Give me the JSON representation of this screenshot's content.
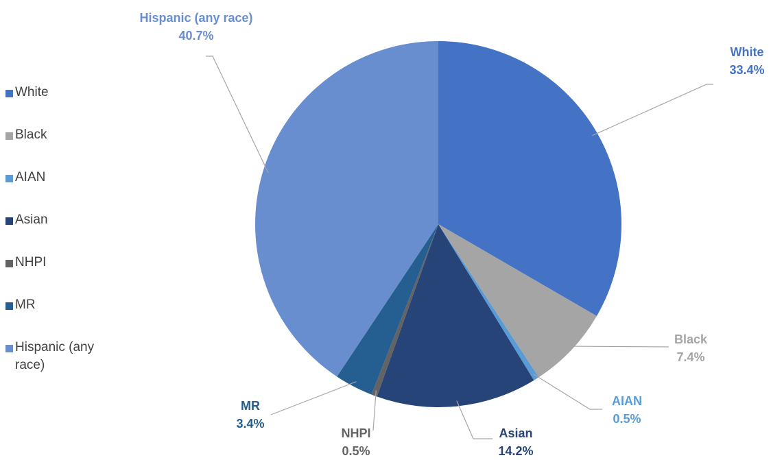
{
  "chart_data": {
    "type": "pie",
    "categories": [
      "White",
      "Black",
      "AIAN",
      "Asian",
      "NHPI",
      "MR",
      "Hispanic (any race)"
    ],
    "values": [
      33.4,
      7.4,
      0.5,
      14.2,
      0.5,
      3.4,
      40.7
    ],
    "value_labels": [
      "33.4%",
      "7.4%",
      "0.5%",
      "14.2%",
      "0.5%",
      "3.4%",
      "40.7%"
    ],
    "colors": [
      "#4472c4",
      "#a5a5a5",
      "#5b9bd5",
      "#264478",
      "#636363",
      "#255e91",
      "#698ed0"
    ],
    "legend": "left"
  }
}
